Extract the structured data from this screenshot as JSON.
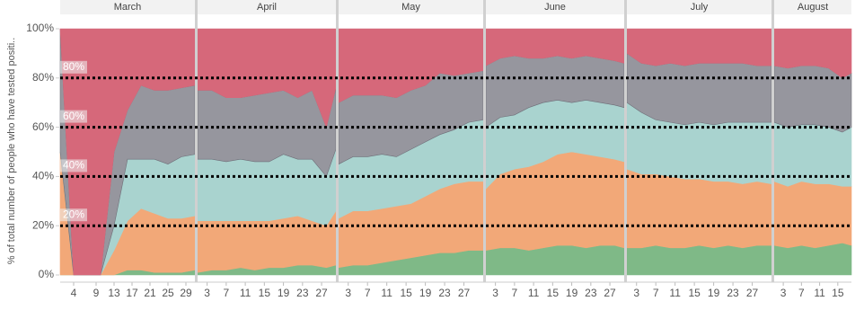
{
  "chart_data": [
    {
      "type": "area",
      "title": "March",
      "y_label": "% of total number of people who have tested positi..",
      "ylim": [
        0,
        100
      ],
      "yticks": [
        {
          "value": 0,
          "label": "0%"
        },
        {
          "value": 20,
          "label": "20%"
        },
        {
          "value": 40,
          "label": "40%"
        },
        {
          "value": 60,
          "label": "60%"
        },
        {
          "value": 80,
          "label": "80%"
        },
        {
          "value": 100,
          "label": "100%"
        }
      ],
      "reference_lines": [
        {
          "value": 20,
          "label": "20%"
        },
        {
          "value": 40,
          "label": "40%"
        },
        {
          "value": 60,
          "label": "60%"
        },
        {
          "value": 80,
          "label": "80%"
        }
      ],
      "x": [
        1,
        4,
        7,
        10,
        13,
        16,
        19,
        22,
        25,
        28,
        31
      ],
      "xlim": [
        1,
        31
      ],
      "xticks": [
        4,
        9,
        13,
        17,
        21,
        25,
        29
      ],
      "series": [
        {
          "color": "#7fb987",
          "values": [
            0,
            0,
            0,
            0,
            0,
            2,
            2,
            1,
            1,
            1,
            2
          ]
        },
        {
          "color": "#f2a878",
          "values": [
            50,
            0,
            0,
            0,
            10,
            20,
            25,
            24,
            22,
            22,
            22
          ]
        },
        {
          "color": "#a9d3cf",
          "values": [
            0,
            0,
            0,
            0,
            10,
            25,
            20,
            22,
            22,
            25,
            25
          ]
        },
        {
          "color": "#96969e",
          "values": [
            50,
            0,
            0,
            0,
            30,
            20,
            30,
            28,
            30,
            28,
            28
          ]
        },
        {
          "color": "#d6687a",
          "values": [
            0,
            100,
            100,
            100,
            50,
            33,
            23,
            25,
            25,
            24,
            23
          ]
        }
      ]
    },
    {
      "type": "area",
      "title": "April",
      "x": [
        1,
        4,
        7,
        10,
        13,
        16,
        19,
        22,
        25,
        28,
        30
      ],
      "xlim": [
        1,
        30
      ],
      "xticks": [
        3,
        7,
        11,
        15,
        19,
        23,
        27
      ],
      "series": [
        {
          "color": "#7fb987",
          "values": [
            1,
            2,
            2,
            3,
            2,
            3,
            3,
            4,
            4,
            3,
            4
          ]
        },
        {
          "color": "#f2a878",
          "values": [
            21,
            20,
            20,
            19,
            20,
            19,
            20,
            20,
            18,
            17,
            22
          ]
        },
        {
          "color": "#a9d3cf",
          "values": [
            25,
            25,
            24,
            25,
            24,
            24,
            26,
            23,
            25,
            20,
            25
          ]
        },
        {
          "color": "#96969e",
          "values": [
            28,
            28,
            26,
            25,
            27,
            28,
            26,
            25,
            28,
            20,
            25
          ]
        },
        {
          "color": "#d6687a",
          "values": [
            25,
            25,
            28,
            28,
            27,
            26,
            25,
            28,
            25,
            40,
            24
          ]
        }
      ]
    },
    {
      "type": "area",
      "title": "May",
      "x": [
        1,
        4,
        7,
        10,
        13,
        16,
        19,
        22,
        25,
        28,
        31
      ],
      "xlim": [
        1,
        31
      ],
      "xticks": [
        3,
        7,
        11,
        15,
        19,
        23,
        27
      ],
      "series": [
        {
          "color": "#7fb987",
          "values": [
            3,
            4,
            4,
            5,
            6,
            7,
            8,
            9,
            9,
            10,
            10
          ]
        },
        {
          "color": "#f2a878",
          "values": [
            20,
            22,
            22,
            22,
            22,
            22,
            24,
            26,
            28,
            28,
            28
          ]
        },
        {
          "color": "#a9d3cf",
          "values": [
            22,
            22,
            22,
            22,
            20,
            22,
            22,
            22,
            22,
            24,
            25
          ]
        },
        {
          "color": "#96969e",
          "values": [
            25,
            25,
            25,
            24,
            24,
            24,
            23,
            25,
            22,
            20,
            20
          ]
        },
        {
          "color": "#d6687a",
          "values": [
            30,
            27,
            27,
            27,
            28,
            25,
            23,
            18,
            19,
            18,
            17
          ]
        }
      ]
    },
    {
      "type": "area",
      "title": "June",
      "x": [
        1,
        4,
        7,
        10,
        13,
        16,
        19,
        22,
        25,
        28,
        30
      ],
      "xlim": [
        1,
        30
      ],
      "xticks": [
        3,
        7,
        11,
        15,
        19,
        23,
        27
      ],
      "series": [
        {
          "color": "#7fb987",
          "values": [
            10,
            11,
            11,
            10,
            11,
            12,
            12,
            11,
            12,
            12,
            11
          ]
        },
        {
          "color": "#f2a878",
          "values": [
            25,
            30,
            32,
            34,
            35,
            37,
            38,
            38,
            36,
            35,
            35
          ]
        },
        {
          "color": "#a9d3cf",
          "values": [
            25,
            23,
            22,
            24,
            24,
            22,
            20,
            22,
            22,
            22,
            22
          ]
        },
        {
          "color": "#96969e",
          "values": [
            25,
            24,
            24,
            20,
            18,
            18,
            18,
            18,
            18,
            18,
            18
          ]
        },
        {
          "color": "#d6687a",
          "values": [
            15,
            12,
            11,
            12,
            12,
            11,
            12,
            11,
            12,
            13,
            14
          ]
        }
      ]
    },
    {
      "type": "area",
      "title": "July",
      "x": [
        1,
        4,
        7,
        10,
        13,
        16,
        19,
        22,
        25,
        28,
        31
      ],
      "xlim": [
        1,
        31
      ],
      "xticks": [
        3,
        7,
        11,
        15,
        19,
        23,
        27
      ],
      "series": [
        {
          "color": "#7fb987",
          "values": [
            11,
            11,
            12,
            11,
            11,
            12,
            11,
            12,
            11,
            12,
            12
          ]
        },
        {
          "color": "#f2a878",
          "values": [
            32,
            30,
            29,
            29,
            28,
            27,
            27,
            26,
            26,
            26,
            25
          ]
        },
        {
          "color": "#a9d3cf",
          "values": [
            27,
            25,
            22,
            22,
            22,
            23,
            23,
            24,
            25,
            24,
            25
          ]
        },
        {
          "color": "#96969e",
          "values": [
            20,
            20,
            22,
            24,
            24,
            24,
            25,
            24,
            24,
            23,
            23
          ]
        },
        {
          "color": "#d6687a",
          "values": [
            10,
            14,
            15,
            14,
            15,
            14,
            14,
            14,
            14,
            15,
            15
          ]
        }
      ]
    },
    {
      "type": "area",
      "title": "August",
      "x": [
        1,
        4,
        7,
        10,
        13,
        16,
        18
      ],
      "xlim": [
        1,
        18
      ],
      "xticks": [
        3,
        7,
        11,
        15
      ],
      "series": [
        {
          "color": "#7fb987",
          "values": [
            12,
            11,
            12,
            11,
            12,
            13,
            12
          ]
        },
        {
          "color": "#f2a878",
          "values": [
            26,
            25,
            26,
            26,
            25,
            23,
            24
          ]
        },
        {
          "color": "#a9d3cf",
          "values": [
            24,
            24,
            23,
            24,
            23,
            22,
            24
          ]
        },
        {
          "color": "#96969e",
          "values": [
            23,
            24,
            24,
            24,
            24,
            22,
            22
          ]
        },
        {
          "color": "#d6687a",
          "values": [
            15,
            16,
            15,
            15,
            16,
            20,
            18
          ]
        }
      ]
    }
  ]
}
